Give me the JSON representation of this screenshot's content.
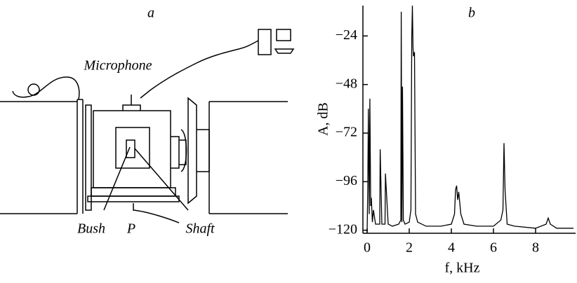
{
  "panel_a": {
    "label": "a",
    "microphone": "Microphone",
    "bush": "Bush",
    "force": "P",
    "shaft": "Shaft"
  },
  "chart_data": {
    "type": "line",
    "label": "b",
    "x_label": "f, kHz",
    "y_label": "A, dB",
    "x": [
      0,
      0.03,
      0.06,
      0.1,
      0.13,
      0.17,
      0.2,
      0.25,
      0.3,
      0.4,
      0.6,
      0.62,
      0.7,
      0.85,
      0.87,
      1.0,
      1.2,
      1.5,
      1.6,
      1.62,
      1.65,
      1.68,
      1.72,
      1.8,
      2.0,
      2.08,
      2.12,
      2.15,
      2.18,
      2.2,
      2.25,
      2.3,
      2.4,
      2.8,
      3.5,
      4.0,
      4.15,
      4.2,
      4.25,
      4.3,
      4.35,
      4.45,
      4.6,
      5.2,
      6.0,
      6.35,
      6.45,
      6.5,
      6.55,
      6.65,
      7.0,
      8.0,
      8.5,
      8.6,
      8.7,
      9.0,
      9.8
    ],
    "values": [
      -121,
      -100,
      -60,
      -112,
      -55,
      -108,
      -104,
      -116,
      -110,
      -117,
      -117,
      -80,
      -117,
      -117,
      -92,
      -117,
      -118,
      -117,
      -115,
      -12,
      -116,
      -49,
      -115,
      -117,
      -116,
      -110,
      -25,
      -9,
      -30,
      -34,
      -32,
      -112,
      -116,
      -118,
      -118,
      -117,
      -112,
      -100,
      -98,
      -105,
      -101,
      -112,
      -117,
      -118,
      -118,
      -115,
      -110,
      -77,
      -100,
      -117,
      -118,
      -119,
      -117,
      -114,
      -117,
      -119,
      -119
    ],
    "color": "#000000",
    "xlim": [
      -0.2,
      9.9
    ],
    "ylim": [
      -121.5,
      -9
    ],
    "xticks": [
      0,
      2,
      4,
      6,
      8
    ],
    "yticks": [
      {
        "value": -24,
        "label": "−24"
      },
      {
        "value": -48,
        "label": "−48"
      },
      {
        "value": -72,
        "label": "−72"
      },
      {
        "value": -96,
        "label": "−96"
      },
      {
        "value": -120,
        "label": "−120"
      }
    ]
  }
}
